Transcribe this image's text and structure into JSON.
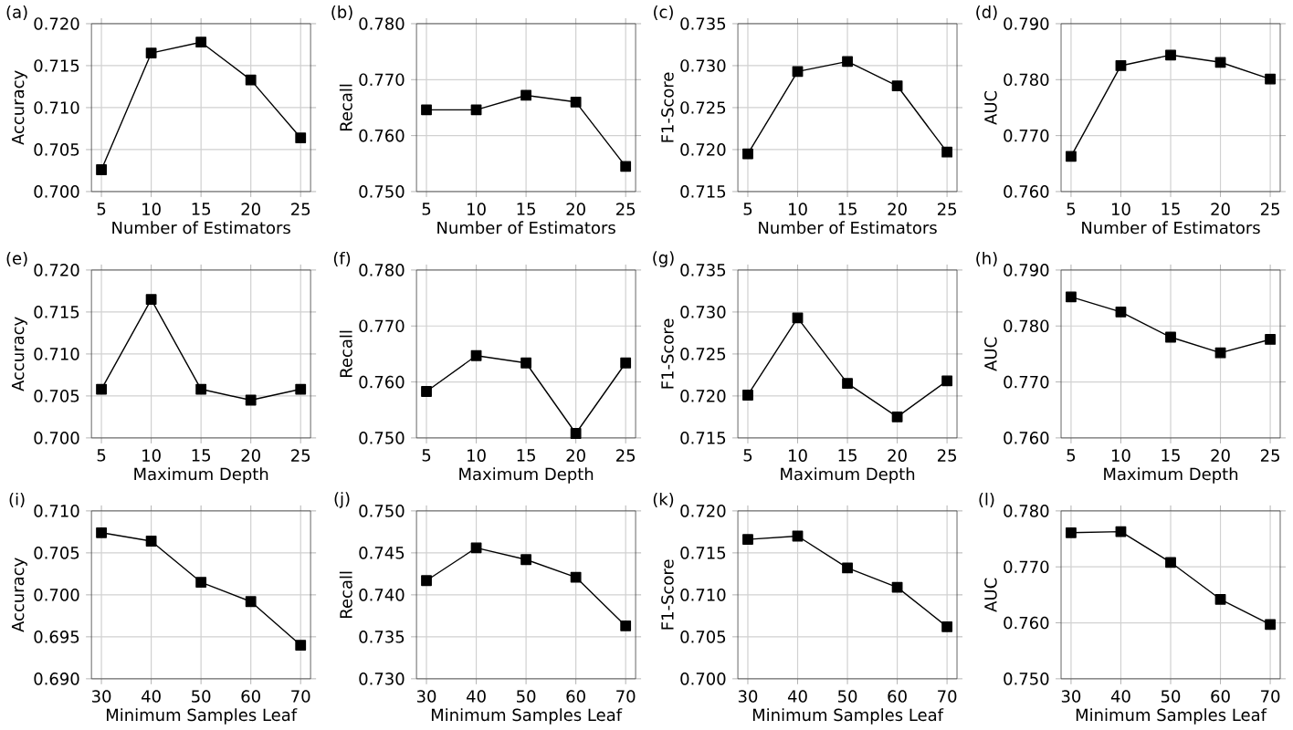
{
  "chart_data": [
    {
      "type": "line",
      "title": "(a)",
      "xlabel": "Number of Estimators",
      "ylabel": "Accuracy",
      "x": [
        5,
        10,
        15,
        20,
        25
      ],
      "values": [
        0.7026,
        0.7165,
        0.7178,
        0.7133,
        0.7064
      ],
      "color": "#000000",
      "xlim": [
        4,
        26
      ],
      "xticks": [
        5,
        10,
        15,
        20,
        25
      ],
      "ylim": [
        0.7,
        0.72
      ],
      "yticks": [
        {
          "value": 0.7,
          "label": "0.700"
        },
        {
          "value": 0.705,
          "label": "0.705"
        },
        {
          "value": 0.71,
          "label": "0.710"
        },
        {
          "value": 0.715,
          "label": "0.715"
        },
        {
          "value": 0.72,
          "label": "0.720"
        }
      ],
      "grid": true,
      "marker": "square",
      "line_style": "solid"
    },
    {
      "type": "line",
      "title": "(b)",
      "xlabel": "Number of Estimators",
      "ylabel": "Recall",
      "x": [
        5,
        10,
        15,
        20,
        25
      ],
      "values": [
        0.7646,
        0.7646,
        0.7672,
        0.766,
        0.7545
      ],
      "color": "#000000",
      "xlim": [
        4,
        26
      ],
      "xticks": [
        5,
        10,
        15,
        20,
        25
      ],
      "ylim": [
        0.75,
        0.78
      ],
      "yticks": [
        {
          "value": 0.75,
          "label": "0.750"
        },
        {
          "value": 0.76,
          "label": "0.760"
        },
        {
          "value": 0.77,
          "label": "0.770"
        },
        {
          "value": 0.78,
          "label": "0.780"
        }
      ],
      "grid": true,
      "marker": "square",
      "line_style": "solid"
    },
    {
      "type": "line",
      "title": "(c)",
      "xlabel": "Number of Estimators",
      "ylabel": "F1-Score",
      "x": [
        5,
        10,
        15,
        20,
        25
      ],
      "values": [
        0.7195,
        0.7293,
        0.7305,
        0.7276,
        0.7197
      ],
      "color": "#000000",
      "xlim": [
        4,
        26
      ],
      "xticks": [
        5,
        10,
        15,
        20,
        25
      ],
      "ylim": [
        0.715,
        0.735
      ],
      "yticks": [
        {
          "value": 0.715,
          "label": "0.715"
        },
        {
          "value": 0.72,
          "label": "0.720"
        },
        {
          "value": 0.725,
          "label": "0.725"
        },
        {
          "value": 0.73,
          "label": "0.730"
        },
        {
          "value": 0.735,
          "label": "0.735"
        }
      ],
      "grid": true,
      "marker": "square",
      "line_style": "solid"
    },
    {
      "type": "line",
      "title": "(d)",
      "xlabel": "Number of Estimators",
      "ylabel": "AUC",
      "x": [
        5,
        10,
        15,
        20,
        25
      ],
      "values": [
        0.7663,
        0.7825,
        0.7844,
        0.7831,
        0.7801
      ],
      "color": "#000000",
      "xlim": [
        4,
        26
      ],
      "xticks": [
        5,
        10,
        15,
        20,
        25
      ],
      "ylim": [
        0.76,
        0.79
      ],
      "yticks": [
        {
          "value": 0.76,
          "label": "0.760"
        },
        {
          "value": 0.77,
          "label": "0.770"
        },
        {
          "value": 0.78,
          "label": "0.780"
        },
        {
          "value": 0.79,
          "label": "0.790"
        }
      ],
      "grid": true,
      "marker": "square",
      "line_style": "solid"
    },
    {
      "type": "line",
      "title": "(e)",
      "xlabel": "Maximum Depth",
      "ylabel": "Accuracy",
      "x": [
        5,
        10,
        15,
        20,
        25
      ],
      "values": [
        0.7058,
        0.7165,
        0.7058,
        0.7045,
        0.7058
      ],
      "color": "#000000",
      "xlim": [
        4,
        26
      ],
      "xticks": [
        5,
        10,
        15,
        20,
        25
      ],
      "ylim": [
        0.7,
        0.72
      ],
      "yticks": [
        {
          "value": 0.7,
          "label": "0.700"
        },
        {
          "value": 0.705,
          "label": "0.705"
        },
        {
          "value": 0.71,
          "label": "0.710"
        },
        {
          "value": 0.715,
          "label": "0.715"
        },
        {
          "value": 0.72,
          "label": "0.720"
        }
      ],
      "grid": true,
      "marker": "square",
      "line_style": "solid"
    },
    {
      "type": "line",
      "title": "(f)",
      "xlabel": "Maximum Depth",
      "ylabel": "Recall",
      "x": [
        5,
        10,
        15,
        20,
        25
      ],
      "values": [
        0.7583,
        0.7647,
        0.7634,
        0.7508,
        0.7634
      ],
      "color": "#000000",
      "xlim": [
        4,
        26
      ],
      "xticks": [
        5,
        10,
        15,
        20,
        25
      ],
      "ylim": [
        0.75,
        0.78
      ],
      "yticks": [
        {
          "value": 0.75,
          "label": "0.750"
        },
        {
          "value": 0.76,
          "label": "0.760"
        },
        {
          "value": 0.77,
          "label": "0.770"
        },
        {
          "value": 0.78,
          "label": "0.780"
        }
      ],
      "grid": true,
      "marker": "square",
      "line_style": "solid"
    },
    {
      "type": "line",
      "title": "(g)",
      "xlabel": "Maximum Depth",
      "ylabel": "F1-Score",
      "x": [
        5,
        10,
        15,
        20,
        25
      ],
      "values": [
        0.7201,
        0.7293,
        0.7215,
        0.7175,
        0.7218
      ],
      "color": "#000000",
      "xlim": [
        4,
        26
      ],
      "xticks": [
        5,
        10,
        15,
        20,
        25
      ],
      "ylim": [
        0.715,
        0.735
      ],
      "yticks": [
        {
          "value": 0.715,
          "label": "0.715"
        },
        {
          "value": 0.72,
          "label": "0.720"
        },
        {
          "value": 0.725,
          "label": "0.725"
        },
        {
          "value": 0.73,
          "label": "0.730"
        },
        {
          "value": 0.735,
          "label": "0.735"
        }
      ],
      "grid": true,
      "marker": "square",
      "line_style": "solid"
    },
    {
      "type": "line",
      "title": "(h)",
      "xlabel": "Maximum Depth",
      "ylabel": "AUC",
      "x": [
        5,
        10,
        15,
        20,
        25
      ],
      "values": [
        0.7852,
        0.7825,
        0.778,
        0.7752,
        0.7776
      ],
      "color": "#000000",
      "xlim": [
        4,
        26
      ],
      "xticks": [
        5,
        10,
        15,
        20,
        25
      ],
      "ylim": [
        0.76,
        0.79
      ],
      "yticks": [
        {
          "value": 0.76,
          "label": "0.760"
        },
        {
          "value": 0.77,
          "label": "0.770"
        },
        {
          "value": 0.78,
          "label": "0.780"
        },
        {
          "value": 0.79,
          "label": "0.790"
        }
      ],
      "grid": true,
      "marker": "square",
      "line_style": "solid"
    },
    {
      "type": "line",
      "title": "(i)",
      "xlabel": "Minimum Samples Leaf",
      "ylabel": "Accuracy",
      "x": [
        30,
        40,
        50,
        60,
        70
      ],
      "values": [
        0.7074,
        0.7064,
        0.7015,
        0.6992,
        0.694
      ],
      "color": "#000000",
      "xlim": [
        28,
        72
      ],
      "xticks": [
        30,
        40,
        50,
        60,
        70
      ],
      "ylim": [
        0.69,
        0.71
      ],
      "yticks": [
        {
          "value": 0.69,
          "label": "0.690"
        },
        {
          "value": 0.695,
          "label": "0.695"
        },
        {
          "value": 0.7,
          "label": "0.700"
        },
        {
          "value": 0.705,
          "label": "0.705"
        },
        {
          "value": 0.71,
          "label": "0.710"
        }
      ],
      "grid": true,
      "marker": "square",
      "line_style": "solid"
    },
    {
      "type": "line",
      "title": "(j)",
      "xlabel": "Minimum Samples Leaf",
      "ylabel": "Recall",
      "x": [
        30,
        40,
        50,
        60,
        70
      ],
      "values": [
        0.7417,
        0.7456,
        0.7442,
        0.7421,
        0.7363
      ],
      "color": "#000000",
      "xlim": [
        28,
        72
      ],
      "xticks": [
        30,
        40,
        50,
        60,
        70
      ],
      "ylim": [
        0.73,
        0.75
      ],
      "yticks": [
        {
          "value": 0.73,
          "label": "0.730"
        },
        {
          "value": 0.735,
          "label": "0.735"
        },
        {
          "value": 0.74,
          "label": "0.740"
        },
        {
          "value": 0.745,
          "label": "0.745"
        },
        {
          "value": 0.75,
          "label": "0.750"
        }
      ],
      "grid": true,
      "marker": "square",
      "line_style": "solid"
    },
    {
      "type": "line",
      "title": "(k)",
      "xlabel": "Minimum Samples Leaf",
      "ylabel": "F1-Score",
      "x": [
        30,
        40,
        50,
        60,
        70
      ],
      "values": [
        0.7166,
        0.717,
        0.7132,
        0.7109,
        0.7062
      ],
      "color": "#000000",
      "xlim": [
        28,
        72
      ],
      "xticks": [
        30,
        40,
        50,
        60,
        70
      ],
      "ylim": [
        0.7,
        0.72
      ],
      "yticks": [
        {
          "value": 0.7,
          "label": "0.700"
        },
        {
          "value": 0.705,
          "label": "0.705"
        },
        {
          "value": 0.71,
          "label": "0.710"
        },
        {
          "value": 0.715,
          "label": "0.715"
        },
        {
          "value": 0.72,
          "label": "0.720"
        }
      ],
      "grid": true,
      "marker": "square",
      "line_style": "solid"
    },
    {
      "type": "line",
      "title": "(l)",
      "xlabel": "Minimum Samples Leaf",
      "ylabel": "AUC",
      "x": [
        30,
        40,
        50,
        60,
        70
      ],
      "values": [
        0.7761,
        0.7763,
        0.7708,
        0.7642,
        0.7597
      ],
      "color": "#000000",
      "xlim": [
        28,
        72
      ],
      "xticks": [
        30,
        40,
        50,
        60,
        70
      ],
      "ylim": [
        0.75,
        0.78
      ],
      "yticks": [
        {
          "value": 0.75,
          "label": "0.750"
        },
        {
          "value": 0.76,
          "label": "0.760"
        },
        {
          "value": 0.77,
          "label": "0.770"
        },
        {
          "value": 0.78,
          "label": "0.780"
        }
      ],
      "grid": true,
      "marker": "square",
      "line_style": "solid"
    }
  ]
}
